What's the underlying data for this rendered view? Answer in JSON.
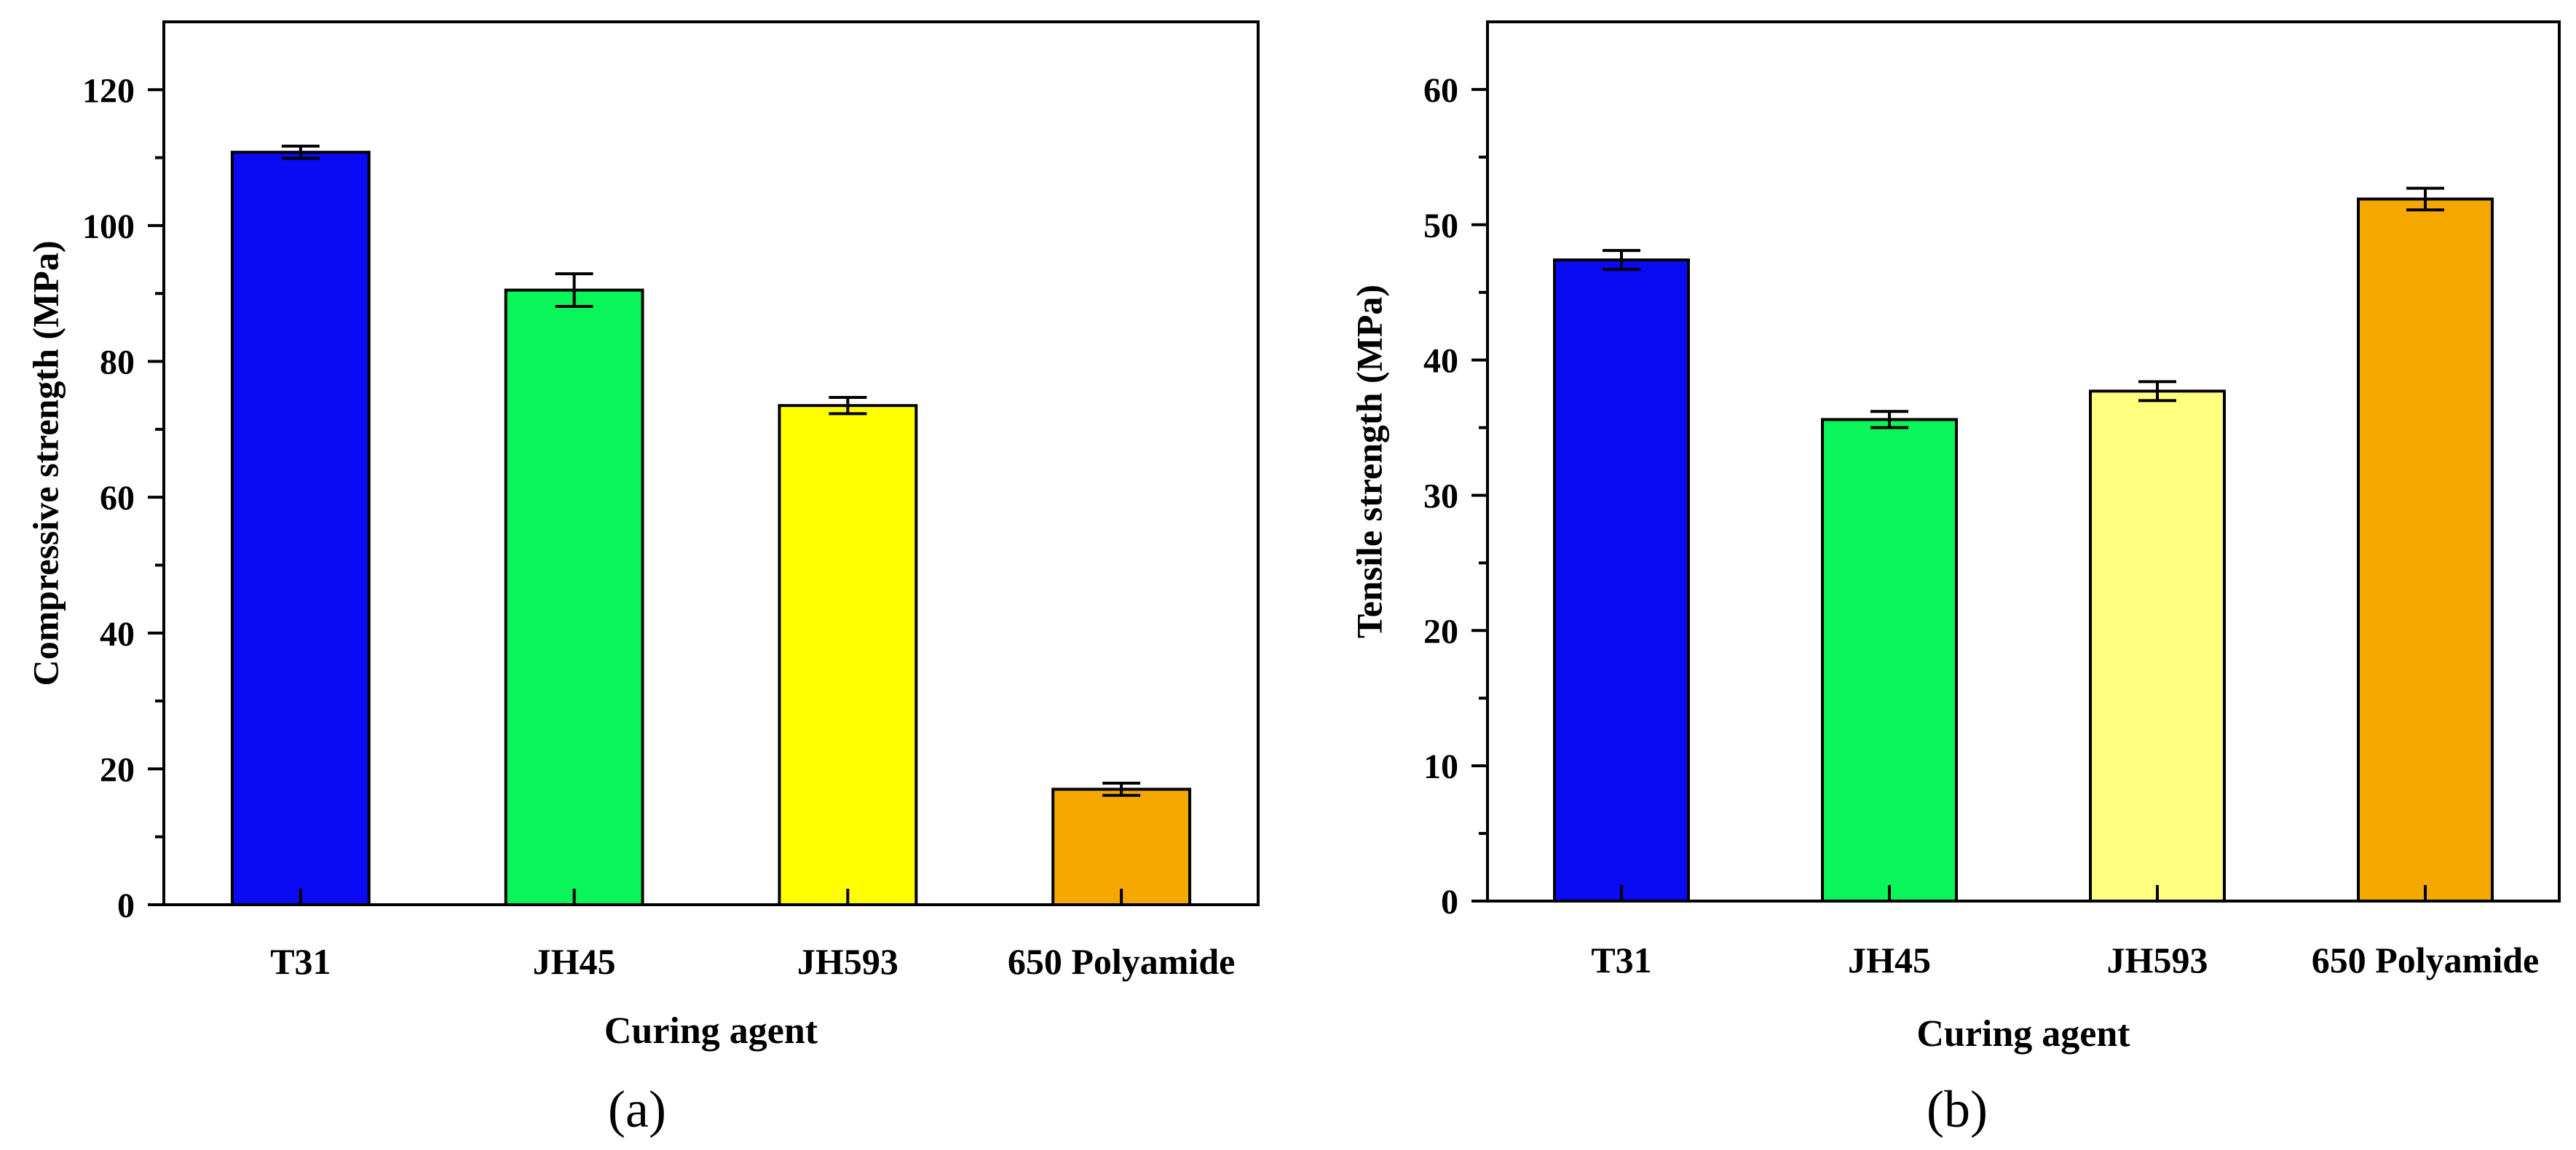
{
  "chart_data": [
    {
      "type": "bar",
      "panel_label": "(a)",
      "xlabel": "Curing agent",
      "ylabel": "Compressive strength (MPa)",
      "ylim": [
        0,
        130
      ],
      "yticks": [
        0,
        20,
        40,
        60,
        80,
        100,
        120
      ],
      "yticklabels": [
        "0",
        "20",
        "40",
        "60",
        "80",
        "100",
        "120"
      ],
      "categories": [
        "T31",
        "JH45",
        "JH593",
        "650 Polyamide"
      ],
      "values": [
        110.8,
        90.5,
        73.5,
        17.0
      ],
      "errors": [
        0.9,
        2.4,
        1.2,
        0.9
      ],
      "colors": [
        "#0A0AF5",
        "#0AF55A",
        "#FFFF00",
        "#F5A800"
      ]
    },
    {
      "type": "bar",
      "panel_label": "(b)",
      "xlabel": "Curing agent",
      "ylabel": "Tensile strength (MPa)",
      "ylim": [
        0,
        65
      ],
      "yticks": [
        0,
        10,
        20,
        30,
        40,
        50,
        60
      ],
      "yticklabels": [
        "0",
        "10",
        "20",
        "30",
        "40",
        "50",
        "60"
      ],
      "categories": [
        "T31",
        "JH45",
        "JH593",
        "650 Polyamide"
      ],
      "values": [
        47.4,
        35.6,
        37.7,
        51.9
      ],
      "errors": [
        0.7,
        0.6,
        0.7,
        0.8
      ],
      "colors": [
        "#0A0AF5",
        "#0AF55A",
        "#FFFF80",
        "#F5A800"
      ]
    }
  ]
}
